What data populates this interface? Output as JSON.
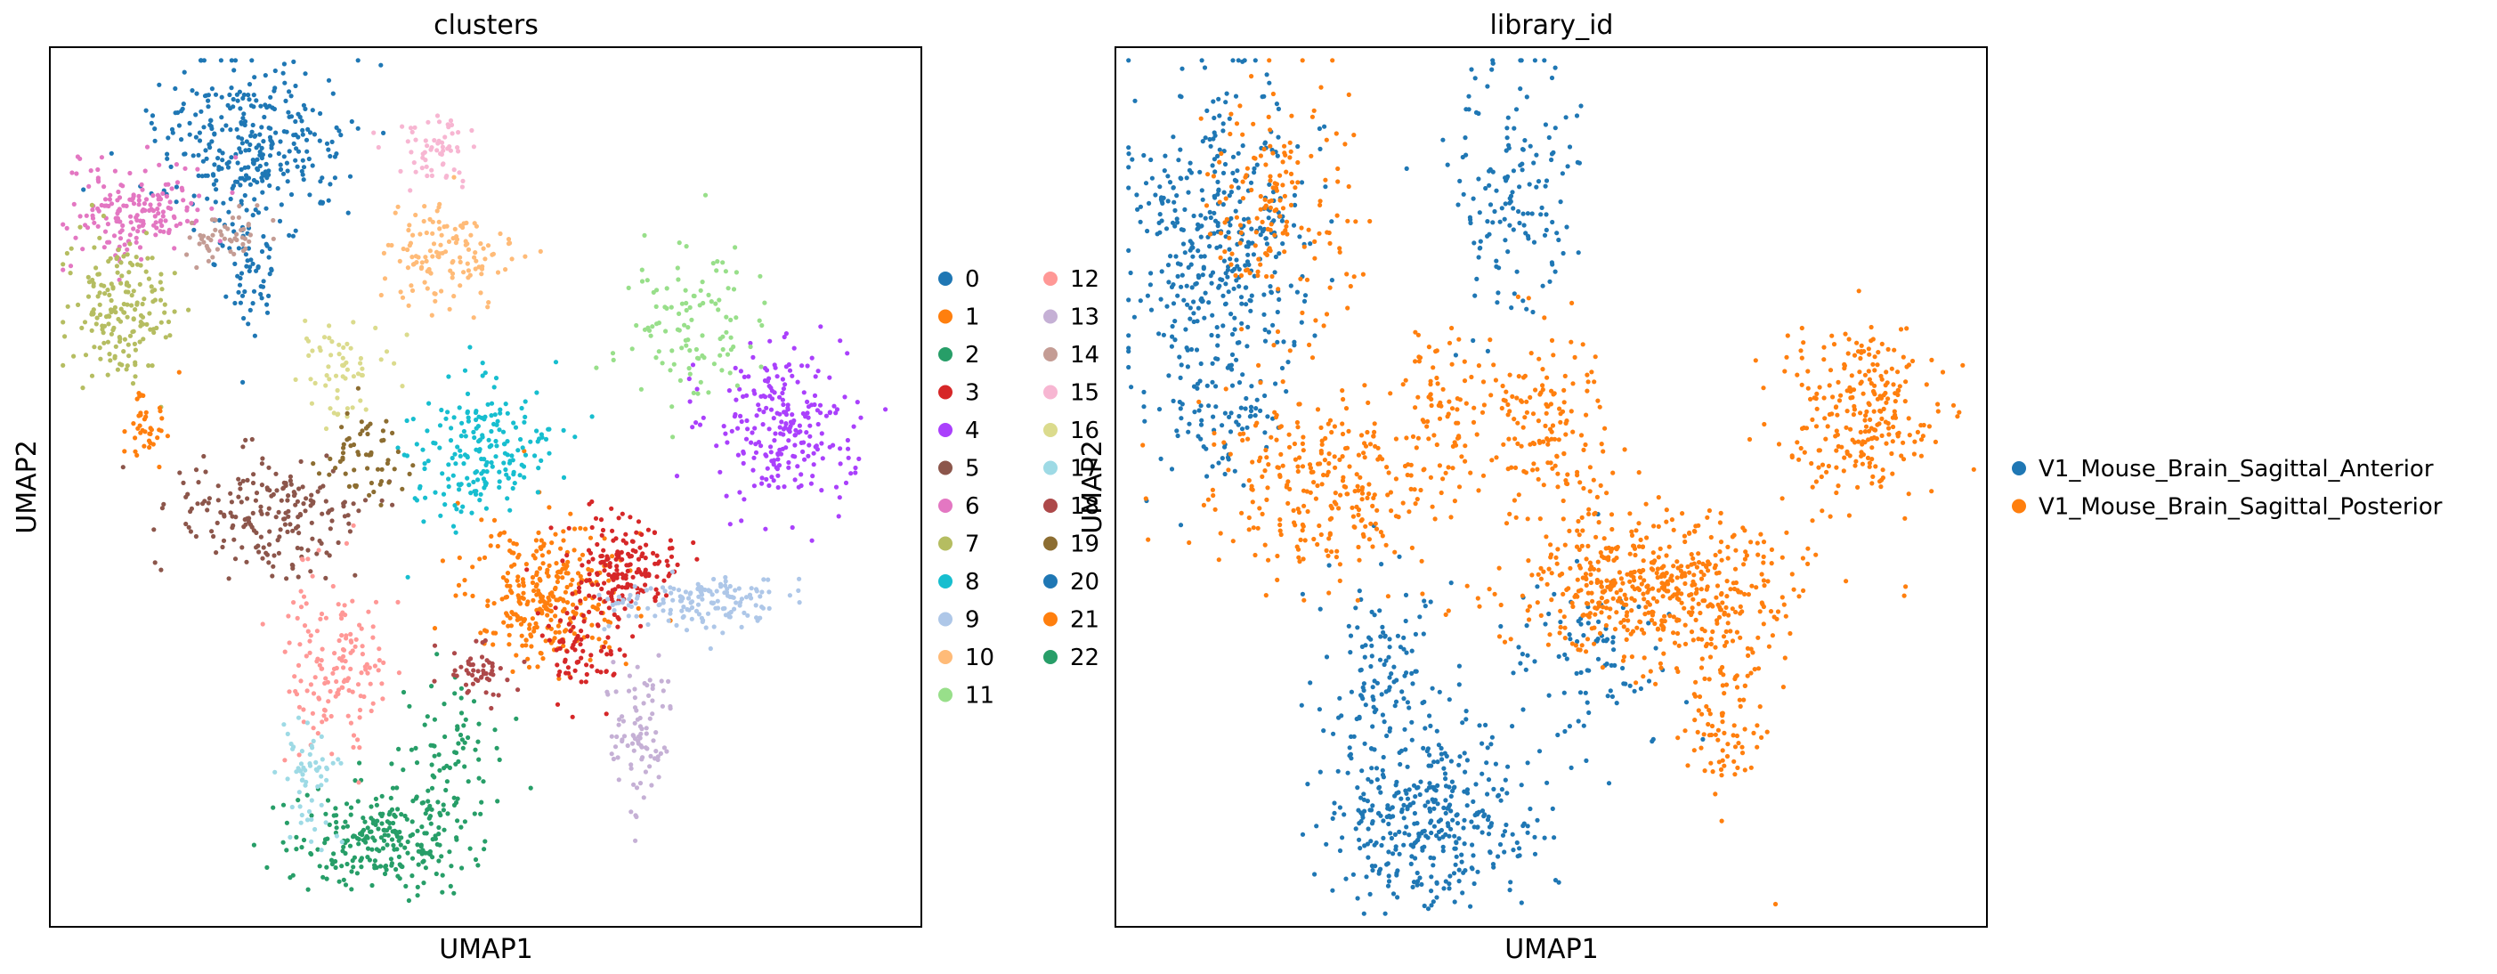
{
  "chart_data": [
    {
      "type": "scatter",
      "title": "clusters",
      "xlabel": "UMAP1",
      "ylabel": "UMAP2",
      "grid": false,
      "legend_position": "right",
      "legend_columns": 2,
      "legend": [
        {
          "name": "0",
          "color": "#1f77b4"
        },
        {
          "name": "1",
          "color": "#ff7f0e"
        },
        {
          "name": "2",
          "color": "#279e68"
        },
        {
          "name": "3",
          "color": "#d62728"
        },
        {
          "name": "4",
          "color": "#aa40fc"
        },
        {
          "name": "5",
          "color": "#8c564b"
        },
        {
          "name": "6",
          "color": "#e377c2"
        },
        {
          "name": "7",
          "color": "#b5bd61"
        },
        {
          "name": "8",
          "color": "#17becf"
        },
        {
          "name": "9",
          "color": "#aec7e8"
        },
        {
          "name": "10",
          "color": "#ffbb78"
        },
        {
          "name": "11",
          "color": "#98df8a"
        },
        {
          "name": "12",
          "color": "#ff9896"
        },
        {
          "name": "13",
          "color": "#c5b0d5"
        },
        {
          "name": "14",
          "color": "#c49c94"
        },
        {
          "name": "15",
          "color": "#f7b6d2"
        },
        {
          "name": "16",
          "color": "#dbdb8d"
        },
        {
          "name": "17",
          "color": "#9edae5"
        },
        {
          "name": "18",
          "color": "#ad494a"
        },
        {
          "name": "19",
          "color": "#8c6d31"
        },
        {
          "name": "20",
          "color": "#1f77b4"
        },
        {
          "name": "21",
          "color": "#ff7f0e"
        },
        {
          "name": "22",
          "color": "#279e68"
        }
      ],
      "clusters": [
        {
          "label": "0",
          "cx": 0.23,
          "cy": 0.11,
          "sx": 0.055,
          "sy": 0.045,
          "n": 320
        },
        {
          "label": "0",
          "cx": 0.23,
          "cy": 0.25,
          "sx": 0.02,
          "sy": 0.04,
          "n": 60
        },
        {
          "label": "1",
          "cx": 0.57,
          "cy": 0.62,
          "sx": 0.045,
          "sy": 0.04,
          "n": 300
        },
        {
          "label": "2",
          "cx": 0.38,
          "cy": 0.9,
          "sx": 0.05,
          "sy": 0.03,
          "n": 260
        },
        {
          "label": "2",
          "cx": 0.46,
          "cy": 0.8,
          "sx": 0.035,
          "sy": 0.035,
          "n": 70
        },
        {
          "label": "3",
          "cx": 0.66,
          "cy": 0.59,
          "sx": 0.03,
          "sy": 0.025,
          "n": 170
        },
        {
          "label": "3",
          "cx": 0.61,
          "cy": 0.68,
          "sx": 0.025,
          "sy": 0.03,
          "n": 80
        },
        {
          "label": "4",
          "cx": 0.84,
          "cy": 0.43,
          "sx": 0.04,
          "sy": 0.045,
          "n": 240
        },
        {
          "label": "5",
          "cx": 0.25,
          "cy": 0.53,
          "sx": 0.05,
          "sy": 0.035,
          "n": 200
        },
        {
          "label": "6",
          "cx": 0.1,
          "cy": 0.19,
          "sx": 0.04,
          "sy": 0.03,
          "n": 180
        },
        {
          "label": "7",
          "cx": 0.08,
          "cy": 0.3,
          "sx": 0.03,
          "sy": 0.04,
          "n": 180
        },
        {
          "label": "8",
          "cx": 0.49,
          "cy": 0.46,
          "sx": 0.04,
          "sy": 0.04,
          "n": 200
        },
        {
          "label": "9",
          "cx": 0.74,
          "cy": 0.63,
          "sx": 0.05,
          "sy": 0.015,
          "n": 150
        },
        {
          "label": "10",
          "cx": 0.46,
          "cy": 0.24,
          "sx": 0.04,
          "sy": 0.03,
          "n": 130
        },
        {
          "label": "11",
          "cx": 0.73,
          "cy": 0.32,
          "sx": 0.035,
          "sy": 0.05,
          "n": 110
        },
        {
          "label": "12",
          "cx": 0.33,
          "cy": 0.7,
          "sx": 0.03,
          "sy": 0.05,
          "n": 150
        },
        {
          "label": "13",
          "cx": 0.68,
          "cy": 0.77,
          "sx": 0.02,
          "sy": 0.04,
          "n": 90
        },
        {
          "label": "14",
          "cx": 0.2,
          "cy": 0.21,
          "sx": 0.025,
          "sy": 0.02,
          "n": 50
        },
        {
          "label": "15",
          "cx": 0.44,
          "cy": 0.12,
          "sx": 0.025,
          "sy": 0.02,
          "n": 60
        },
        {
          "label": "16",
          "cx": 0.33,
          "cy": 0.37,
          "sx": 0.025,
          "sy": 0.025,
          "n": 60
        },
        {
          "label": "17",
          "cx": 0.3,
          "cy": 0.83,
          "sx": 0.015,
          "sy": 0.035,
          "n": 60
        },
        {
          "label": "18",
          "cx": 0.49,
          "cy": 0.71,
          "sx": 0.02,
          "sy": 0.015,
          "n": 50
        },
        {
          "label": "19",
          "cx": 0.36,
          "cy": 0.46,
          "sx": 0.025,
          "sy": 0.03,
          "n": 60
        },
        {
          "label": "21",
          "cx": 0.11,
          "cy": 0.43,
          "sx": 0.015,
          "sy": 0.02,
          "n": 40
        }
      ]
    },
    {
      "type": "scatter",
      "title": "library_id",
      "xlabel": "UMAP1",
      "ylabel": "UMAP2",
      "grid": false,
      "legend_position": "right",
      "legend": [
        {
          "name": "V1_Mouse_Brain_Sagittal_Anterior",
          "color": "#1f77b4"
        },
        {
          "name": "V1_Mouse_Brain_Sagittal_Posterior",
          "color": "#ff7f0e"
        }
      ],
      "clusters": [
        {
          "label": "V1_Mouse_Brain_Sagittal_Anterior",
          "cx": 0.12,
          "cy": 0.22,
          "sx": 0.05,
          "sy": 0.09,
          "n": 420
        },
        {
          "label": "V1_Mouse_Brain_Sagittal_Anterior",
          "cx": 0.36,
          "cy": 0.88,
          "sx": 0.06,
          "sy": 0.05,
          "n": 380
        },
        {
          "label": "V1_Mouse_Brain_Sagittal_Anterior",
          "cx": 0.45,
          "cy": 0.15,
          "sx": 0.04,
          "sy": 0.07,
          "n": 150
        },
        {
          "label": "V1_Mouse_Brain_Sagittal_Anterior",
          "cx": 0.31,
          "cy": 0.71,
          "sx": 0.04,
          "sy": 0.05,
          "n": 120
        },
        {
          "label": "V1_Mouse_Brain_Sagittal_Anterior",
          "cx": 0.12,
          "cy": 0.43,
          "sx": 0.04,
          "sy": 0.04,
          "n": 70
        },
        {
          "label": "V1_Mouse_Brain_Sagittal_Anterior",
          "cx": 0.55,
          "cy": 0.7,
          "sx": 0.05,
          "sy": 0.05,
          "n": 90
        },
        {
          "label": "V1_Mouse_Brain_Sagittal_Posterior",
          "cx": 0.62,
          "cy": 0.61,
          "sx": 0.08,
          "sy": 0.04,
          "n": 520
        },
        {
          "label": "V1_Mouse_Brain_Sagittal_Posterior",
          "cx": 0.25,
          "cy": 0.5,
          "sx": 0.07,
          "sy": 0.05,
          "n": 280
        },
        {
          "label": "V1_Mouse_Brain_Sagittal_Posterior",
          "cx": 0.85,
          "cy": 0.42,
          "sx": 0.045,
          "sy": 0.05,
          "n": 260
        },
        {
          "label": "V1_Mouse_Brain_Sagittal_Posterior",
          "cx": 0.19,
          "cy": 0.18,
          "sx": 0.04,
          "sy": 0.07,
          "n": 170
        },
        {
          "label": "V1_Mouse_Brain_Sagittal_Posterior",
          "cx": 0.49,
          "cy": 0.43,
          "sx": 0.04,
          "sy": 0.06,
          "n": 160
        },
        {
          "label": "V1_Mouse_Brain_Sagittal_Posterior",
          "cx": 0.7,
          "cy": 0.76,
          "sx": 0.03,
          "sy": 0.05,
          "n": 100
        },
        {
          "label": "V1_Mouse_Brain_Sagittal_Posterior",
          "cx": 0.37,
          "cy": 0.4,
          "sx": 0.03,
          "sy": 0.04,
          "n": 70
        }
      ]
    }
  ]
}
